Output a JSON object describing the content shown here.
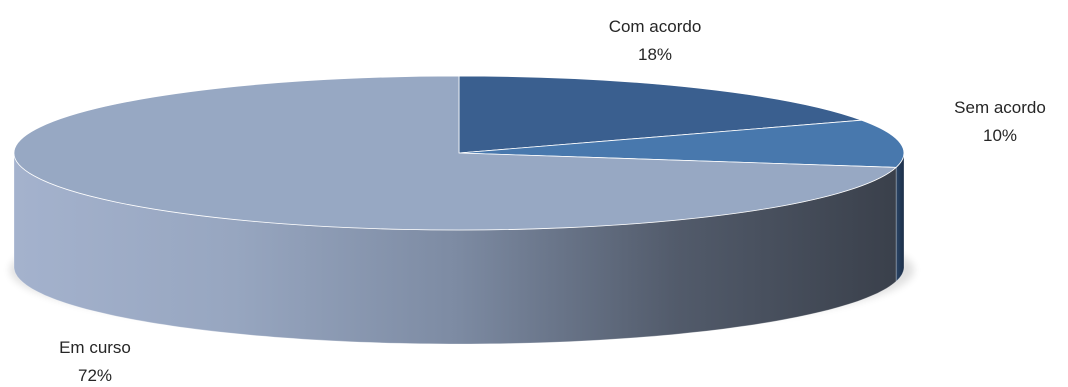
{
  "chart_data": {
    "type": "pie",
    "title": "",
    "three_d": true,
    "slices": [
      {
        "name": "Com acordo",
        "label": "18%",
        "value": 18,
        "color": "#3a5f8f"
      },
      {
        "name": "Sem acordo",
        "label": "10%",
        "value": 10,
        "color": "#4878ad"
      },
      {
        "name": "Em curso",
        "label": "72%",
        "value": 72,
        "color": "#97a8c3"
      }
    ],
    "legend": "none",
    "start_angle_deg": 90,
    "direction": "clockwise"
  }
}
